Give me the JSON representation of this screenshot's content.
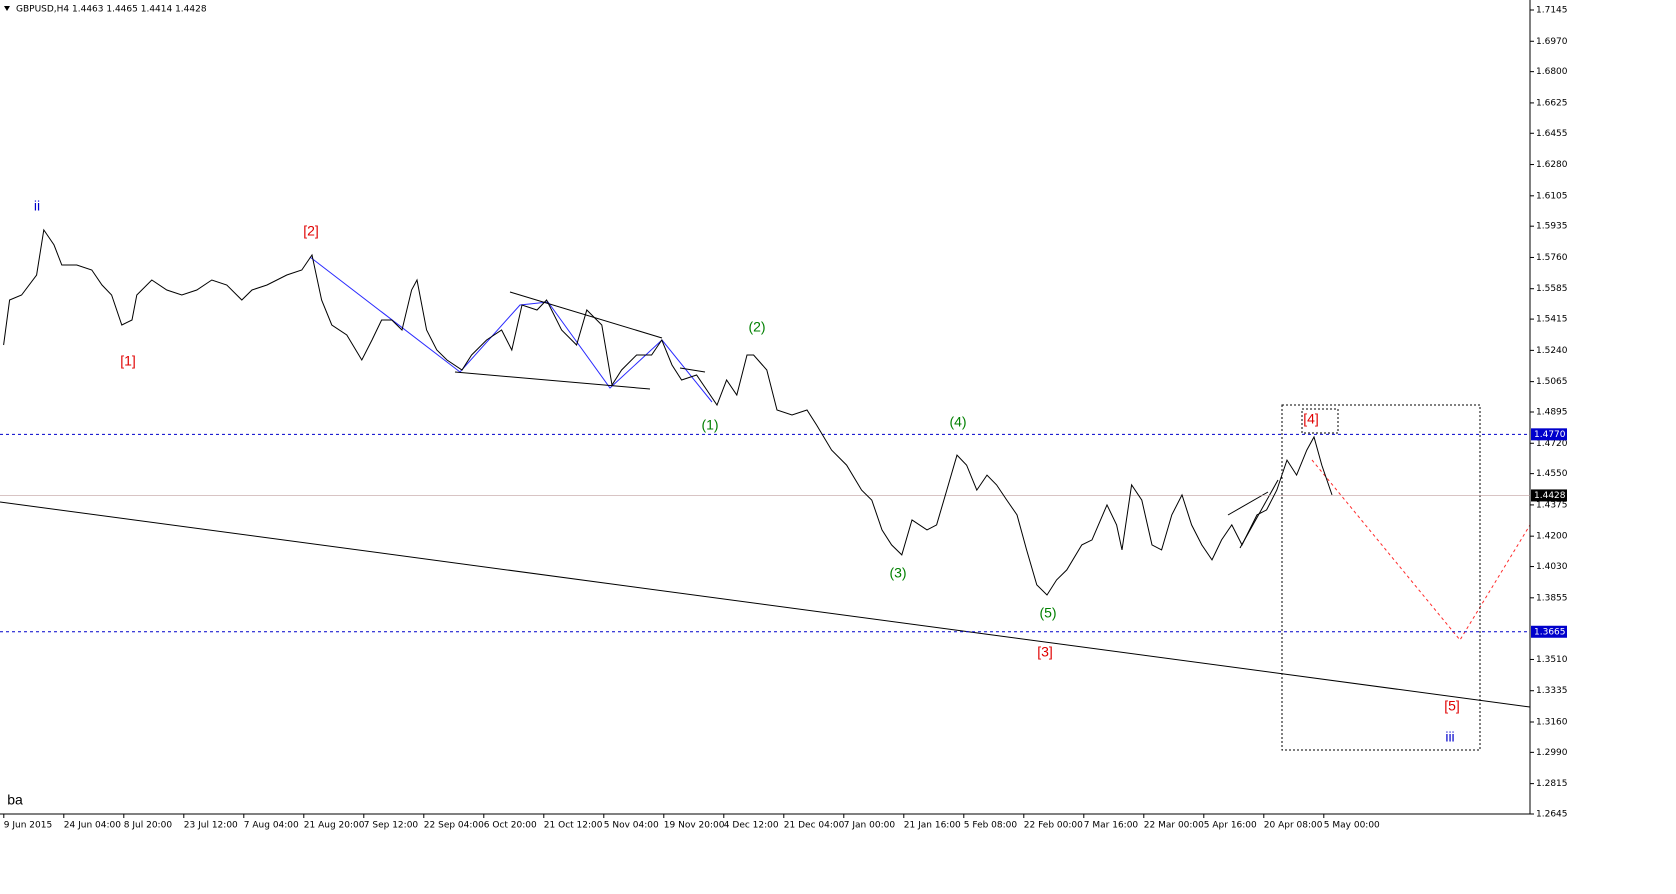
{
  "chart_data": {
    "type": "line",
    "title": "GBPUSD,H4  1.4463 1.4465 1.4414 1.4428",
    "x": [
      0.03,
      0.13,
      0.33,
      0.58,
      0.7,
      0.87,
      1,
      1.25,
      1.5,
      1.67,
      1.83,
      2,
      2.17,
      2.25,
      2.5,
      2.75,
      3,
      3.25,
      3.5,
      3.75,
      4,
      4.17,
      4.42,
      4.75,
      5,
      5.17,
      5.33,
      5.5,
      5.75,
      6,
      6.17,
      6.33,
      6.5,
      6.67,
      6.83,
      6.92,
      7.08,
      7.25,
      7.42,
      7.67,
      7.83,
      8.08,
      8.33,
      8.5,
      8.67,
      8.92,
      9.08,
      9.33,
      9.58,
      9.75,
      10,
      10.17,
      10.33,
      10.58,
      10.83,
      11,
      11.17,
      11.33,
      11.58,
      11.75,
      11.92,
      12.08,
      12.25,
      12.42,
      12.53,
      12.75,
      12.92,
      13.17,
      13.42,
      13.58,
      13.83,
      14.08,
      14.33,
      14.5,
      14.67,
      14.83,
      15,
      15.17,
      15.42,
      15.58,
      15.75,
      15.92,
      16.08,
      16.25,
      16.42,
      16.58,
      16.75,
      16.92,
      17.08,
      17.25,
      17.42,
      17.58,
      17.75,
      18,
      18.17,
      18.42,
      18.58,
      18.67,
      18.83,
      19,
      19.17,
      19.33,
      19.5,
      19.67,
      19.83,
      20,
      20.17,
      20.33,
      20.5,
      20.67,
      20.92,
      21.08,
      21.25,
      21.42,
      21.58,
      21.75,
      21.87,
      22,
      22.17
    ],
    "series": [
      {
        "name": "GBPUSD",
        "color": "#000000",
        "values": [
          1.527,
          1.5522,
          1.555,
          1.5662,
          1.5914,
          1.583,
          1.5718,
          1.5718,
          1.569,
          1.5606,
          1.555,
          1.5382,
          1.541,
          1.555,
          1.5634,
          1.5578,
          1.555,
          1.5578,
          1.5634,
          1.5606,
          1.5522,
          1.5578,
          1.5606,
          1.5662,
          1.569,
          1.5774,
          1.5522,
          1.5382,
          1.5326,
          1.5186,
          1.5298,
          1.541,
          1.541,
          1.5354,
          1.5578,
          1.5634,
          1.5354,
          1.5242,
          1.5186,
          1.513,
          1.5214,
          1.5298,
          1.5354,
          1.5242,
          1.5494,
          1.5466,
          1.5522,
          1.5354,
          1.527,
          1.5466,
          1.5382,
          1.5046,
          1.513,
          1.5214,
          1.5214,
          1.5298,
          1.5158,
          1.5074,
          1.5102,
          1.5018,
          1.4934,
          1.5074,
          1.499,
          1.5214,
          1.5214,
          1.513,
          1.4906,
          1.4878,
          1.4906,
          1.4822,
          1.4682,
          1.4598,
          1.4458,
          1.4402,
          1.4235,
          1.4151,
          1.4095,
          1.4291,
          1.4235,
          1.4263,
          1.4458,
          1.4654,
          1.4598,
          1.4458,
          1.4542,
          1.4487,
          1.4402,
          1.4319,
          1.4123,
          1.3927,
          1.3871,
          1.3955,
          1.4011,
          1.4151,
          1.4179,
          1.4375,
          1.4263,
          1.4123,
          1.4487,
          1.4402,
          1.4151,
          1.4123,
          1.4319,
          1.4431,
          1.4263,
          1.4151,
          1.4067,
          1.4179,
          1.4263,
          1.4151,
          1.4319,
          1.4347,
          1.4458,
          1.4626,
          1.4542,
          1.4682,
          1.4755,
          1.4598,
          1.4431
        ]
      }
    ],
    "xlim": [
      -0.03,
      25.47
    ],
    "xticks": [
      {
        "value": 0,
        "label": "9 Jun 2015"
      },
      {
        "value": 1,
        "label": "24 Jun 04:00"
      },
      {
        "value": 2,
        "label": "8 Jul 20:00"
      },
      {
        "value": 3,
        "label": "23 Jul 12:00"
      },
      {
        "value": 4,
        "label": "7 Aug 04:00"
      },
      {
        "value": 5,
        "label": "21 Aug 20:00"
      },
      {
        "value": 6,
        "label": "7 Sep 12:00"
      },
      {
        "value": 7,
        "label": "22 Sep 04:00"
      },
      {
        "value": 8,
        "label": "6 Oct 20:00"
      },
      {
        "value": 9,
        "label": "21 Oct 12:00"
      },
      {
        "value": 10,
        "label": "5 Nov 04:00"
      },
      {
        "value": 11,
        "label": "19 Nov 20:00"
      },
      {
        "value": 12,
        "label": "4 Dec 12:00"
      },
      {
        "value": 13,
        "label": "21 Dec 04:00"
      },
      {
        "value": 14,
        "label": "7 Jan 00:00"
      },
      {
        "value": 15,
        "label": "21 Jan 16:00"
      },
      {
        "value": 16,
        "label": "5 Feb 08:00"
      },
      {
        "value": 17,
        "label": "22 Feb 00:00"
      },
      {
        "value": 18,
        "label": "7 Mar 16:00"
      },
      {
        "value": 19,
        "label": "22 Mar 00:00"
      },
      {
        "value": 20,
        "label": "5 Apr 16:00"
      },
      {
        "value": 21,
        "label": "20 Apr 08:00"
      },
      {
        "value": 22,
        "label": "5 May 00:00"
      }
    ],
    "ylim": [
      1.2645,
      1.7145
    ],
    "yticks": [
      1.7145,
      {
        "value": 1.697,
        "label": "1.6970"
      },
      {
        "value": 1.68,
        "label": "1.6800"
      },
      1.6625,
      1.6455,
      {
        "value": 1.628,
        "label": "1.6280"
      },
      1.6105,
      1.5935,
      {
        "value": 1.576,
        "label": "1.5760"
      },
      1.5585,
      1.5415,
      {
        "value": 1.524,
        "label": "1.5240"
      },
      1.5065,
      1.4895,
      {
        "value": 1.472,
        "label": "1.4720"
      },
      {
        "value": 1.455,
        "label": "1.4550"
      },
      1.4375,
      {
        "value": 1.42,
        "label": "1.4200"
      },
      {
        "value": 1.403,
        "label": "1.4030"
      },
      1.3855,
      {
        "value": 1.351,
        "label": "1.3510"
      },
      1.3335,
      {
        "value": 1.316,
        "label": "1.3160"
      },
      {
        "value": 1.299,
        "label": "1.2990"
      },
      1.2815,
      1.2645
    ],
    "levels": [
      {
        "value": 1.477,
        "label": "1.4770"
      },
      {
        "value": 1.3665,
        "label": "1.3665"
      }
    ],
    "level_color": "#0000cc",
    "current_price": 1.4428,
    "annotations": [
      {
        "text": "ii",
        "color": "#0000cc"
      },
      {
        "text": "[1]",
        "color": "#e00000"
      },
      {
        "text": "[2]",
        "color": "#e00000"
      },
      {
        "text": "(1)",
        "color": "#008000"
      },
      {
        "text": "(2)",
        "color": "#008000"
      },
      {
        "text": "(3)",
        "color": "#008000"
      },
      {
        "text": "(4)",
        "color": "#008000"
      },
      {
        "text": "(5)",
        "color": "#008000"
      },
      {
        "text": "[3]",
        "color": "#e00000"
      },
      {
        "text": "[4]",
        "color": "#e00000"
      },
      {
        "text": "[5]",
        "color": "#e00000"
      },
      {
        "text": "iii",
        "color": "#0000cc"
      },
      {
        "text": "ba",
        "color": "#000000"
      }
    ]
  }
}
